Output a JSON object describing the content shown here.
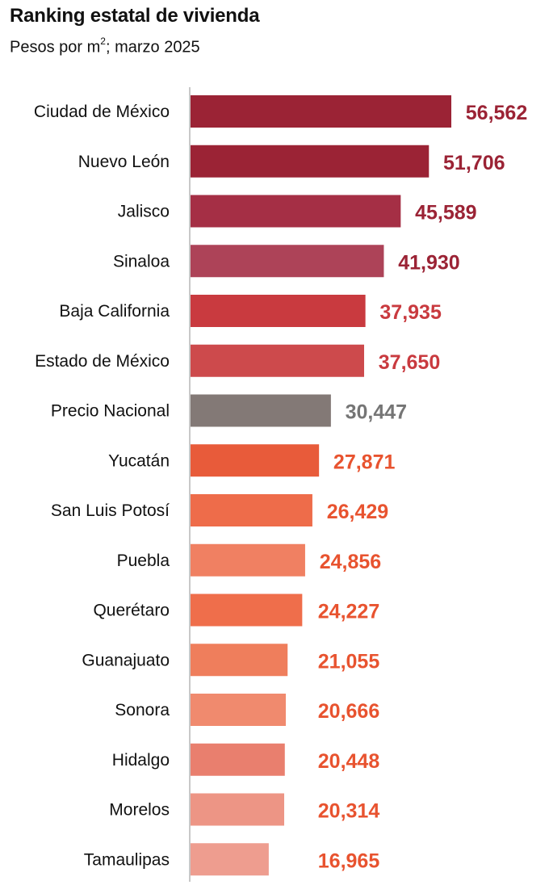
{
  "title": "Ranking estatal de vivienda",
  "subtitle_before": "Pesos por m",
  "subtitle_sup": "2",
  "subtitle_after": "; marzo 2025",
  "chart_data": {
    "type": "bar",
    "orientation": "horizontal",
    "title": "Ranking estatal de vivienda",
    "subtitle": "Pesos por m²; marzo 2025",
    "categories": [
      "Ciudad de México",
      "Nuevo León",
      "Jalisco",
      "Sinaloa",
      "Baja California",
      "Estado de México",
      "Precio Nacional",
      "Yucatán",
      "San Luis Potosí",
      "Puebla",
      "Querétaro",
      "Guanajuato",
      "Sonora",
      "Hidalgo",
      "Morelos",
      "Tamaulipas"
    ],
    "values": [
      56562,
      51706,
      45589,
      41930,
      37935,
      37650,
      30447,
      27871,
      26429,
      24856,
      24227,
      21055,
      20666,
      20448,
      20314,
      16965
    ],
    "value_labels": [
      "56,562",
      "51,706",
      "45,589",
      "41,930",
      "37,935",
      "37,650",
      "30,447",
      "27,871",
      "26,429",
      "24,856",
      "24,227",
      "21,055",
      "20,666",
      "20,448",
      "20,314",
      "16,965"
    ],
    "bar_colors": [
      "#9b2335",
      "#9b2335",
      "#a52f45",
      "#ad4358",
      "#c93a3f",
      "#cd4a4c",
      "#837976",
      "#e85b3a",
      "#ee6c4a",
      "#f08062",
      "#ef6e4b",
      "#ef7e5c",
      "#f08a6e",
      "#e97f6e",
      "#ed9585",
      "#ee9d8f"
    ],
    "label_colors": [
      "#9b2335",
      "#9b2335",
      "#9b2335",
      "#9b2335",
      "#c93a3f",
      "#c93a3f",
      "#757575",
      "#e8532f",
      "#e8532f",
      "#e8532f",
      "#e8532f",
      "#e8532f",
      "#e8532f",
      "#e8532f",
      "#e8532f",
      "#e8532f"
    ],
    "xlim": [
      0,
      60000
    ],
    "grid": false,
    "legend": "none"
  }
}
